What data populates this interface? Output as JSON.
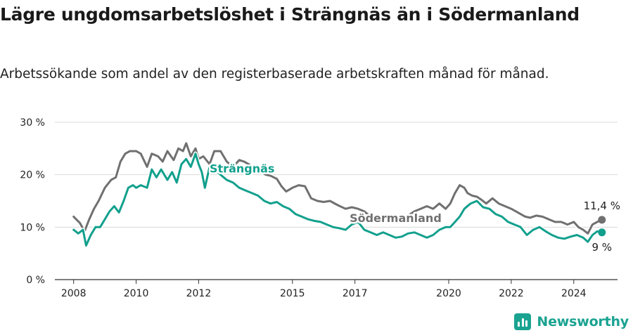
{
  "chart_data": {
    "type": "line",
    "title": "Lägre ungdomsarbetslöshet i Strängnäs än i Södermanland",
    "subtitle": "Arbetssökande som andel av den registerbaserade arbetskraften månad för månad.",
    "ylim": [
      0,
      30
    ],
    "yticks": [
      "0 %",
      "10 %",
      "20 %",
      "30 %"
    ],
    "ytick_values": [
      0,
      10,
      20,
      30
    ],
    "xlim": [
      2007.4,
      2025.4
    ],
    "xticks": [
      "2008",
      "2010",
      "2012",
      "2015",
      "2017",
      "2020",
      "2022",
      "2024"
    ],
    "xtick_values": [
      2008,
      2010,
      2012,
      2015,
      2017,
      2020,
      2022,
      2024
    ],
    "series": [
      {
        "name": "Södermanland",
        "color": "#707070",
        "end_label": "11,4 %",
        "label_year": 2018.35,
        "x": [
          2008.0,
          2008.2,
          2008.35,
          2008.5,
          2008.65,
          2008.8,
          2009.0,
          2009.2,
          2009.35,
          2009.5,
          2009.65,
          2009.8,
          2010.0,
          2010.15,
          2010.35,
          2010.5,
          2010.7,
          2010.85,
          2011.0,
          2011.2,
          2011.35,
          2011.5,
          2011.6,
          2011.75,
          2011.9,
          2012.0,
          2012.15,
          2012.35,
          2012.5,
          2012.7,
          2012.9,
          2013.1,
          2013.3,
          2013.45,
          2013.6,
          2013.8,
          2014.0,
          2014.15,
          2014.3,
          2014.5,
          2014.65,
          2014.8,
          2015.0,
          2015.2,
          2015.4,
          2015.6,
          2015.8,
          2016.0,
          2016.2,
          2016.45,
          2016.7,
          2016.9,
          2017.1,
          2017.3,
          2017.5,
          2017.7,
          2017.9,
          2018.1,
          2018.3,
          2018.5,
          2018.7,
          2018.9,
          2019.1,
          2019.3,
          2019.5,
          2019.7,
          2019.9,
          2020.05,
          2020.2,
          2020.35,
          2020.5,
          2020.6,
          2020.75,
          2020.9,
          2021.05,
          2021.2,
          2021.4,
          2021.6,
          2021.8,
          2022.0,
          2022.15,
          2022.3,
          2022.45,
          2022.6,
          2022.8,
          2023.0,
          2023.2,
          2023.4,
          2023.6,
          2023.8,
          2024.0,
          2024.15,
          2024.3,
          2024.45,
          2024.6,
          2024.75,
          2024.9
        ],
        "values": [
          12.0,
          10.8,
          9.2,
          11.5,
          13.5,
          15.0,
          17.5,
          19.0,
          19.5,
          22.5,
          24.0,
          24.5,
          24.5,
          24.0,
          21.5,
          24.0,
          23.5,
          22.5,
          24.5,
          22.8,
          25.0,
          24.5,
          26.0,
          23.5,
          25.0,
          23.0,
          23.5,
          22.0,
          24.5,
          24.5,
          22.5,
          21.5,
          22.8,
          22.5,
          22.0,
          21.2,
          20.5,
          20.0,
          19.8,
          19.2,
          17.8,
          16.8,
          17.5,
          18.0,
          17.8,
          15.5,
          15.0,
          14.8,
          15.0,
          14.2,
          13.5,
          13.8,
          13.5,
          13.0,
          12.0,
          11.8,
          11.5,
          11.2,
          11.8,
          12.0,
          12.2,
          13.0,
          13.5,
          14.0,
          13.5,
          14.5,
          13.5,
          14.5,
          16.5,
          18.0,
          17.5,
          16.5,
          16.0,
          15.8,
          15.2,
          14.5,
          15.5,
          14.5,
          14.0,
          13.5,
          13.0,
          12.5,
          12.0,
          11.8,
          12.2,
          12.0,
          11.5,
          11.0,
          11.0,
          10.5,
          11.0,
          10.0,
          9.5,
          8.8,
          10.5,
          11.0,
          11.4
        ]
      },
      {
        "name": "Strängnäs",
        "color": "#12a08d",
        "end_label": "9 %",
        "label_year": 2012.35,
        "x": [
          2008.0,
          2008.15,
          2008.3,
          2008.4,
          2008.55,
          2008.7,
          2008.85,
          2009.0,
          2009.15,
          2009.3,
          2009.45,
          2009.6,
          2009.75,
          2009.9,
          2010.0,
          2010.15,
          2010.35,
          2010.5,
          2010.65,
          2010.8,
          2011.0,
          2011.15,
          2011.3,
          2011.45,
          2011.6,
          2011.75,
          2011.9,
          2012.0,
          2012.1,
          2012.2,
          2012.35,
          2012.5,
          2012.7,
          2012.9,
          2013.1,
          2013.3,
          2013.5,
          2013.7,
          2013.9,
          2014.1,
          2014.3,
          2014.5,
          2014.7,
          2014.9,
          2015.1,
          2015.3,
          2015.5,
          2015.7,
          2015.9,
          2016.1,
          2016.3,
          2016.5,
          2016.7,
          2016.9,
          2017.1,
          2017.3,
          2017.5,
          2017.7,
          2017.9,
          2018.1,
          2018.3,
          2018.5,
          2018.7,
          2018.9,
          2019.1,
          2019.3,
          2019.5,
          2019.7,
          2019.9,
          2020.05,
          2020.2,
          2020.35,
          2020.5,
          2020.7,
          2020.9,
          2021.1,
          2021.3,
          2021.5,
          2021.7,
          2021.9,
          2022.1,
          2022.3,
          2022.5,
          2022.7,
          2022.9,
          2023.1,
          2023.3,
          2023.5,
          2023.7,
          2023.9,
          2024.1,
          2024.3,
          2024.45,
          2024.6,
          2024.75,
          2024.9
        ],
        "values": [
          9.5,
          8.8,
          9.5,
          6.5,
          8.5,
          10.0,
          10.0,
          11.5,
          13.0,
          14.0,
          12.8,
          15.0,
          17.5,
          18.0,
          17.5,
          18.0,
          17.5,
          21.0,
          19.5,
          21.0,
          19.0,
          20.5,
          18.5,
          22.0,
          23.0,
          21.5,
          24.0,
          22.0,
          20.5,
          17.5,
          21.5,
          21.0,
          20.0,
          19.0,
          18.5,
          17.5,
          17.0,
          16.5,
          16.0,
          15.0,
          14.5,
          14.8,
          14.0,
          13.5,
          12.5,
          12.0,
          11.5,
          11.2,
          11.0,
          10.5,
          10.0,
          9.8,
          9.5,
          10.5,
          11.0,
          9.5,
          9.0,
          8.5,
          9.0,
          8.5,
          8.0,
          8.2,
          8.8,
          9.0,
          8.5,
          8.0,
          8.5,
          9.5,
          10.0,
          10.0,
          11.0,
          12.0,
          13.5,
          14.5,
          15.0,
          13.8,
          13.5,
          12.5,
          12.0,
          11.0,
          10.5,
          10.0,
          8.5,
          9.5,
          10.0,
          9.2,
          8.5,
          8.0,
          7.8,
          8.2,
          8.5,
          8.0,
          7.2,
          8.5,
          9.2,
          9.0
        ]
      }
    ]
  },
  "brand": {
    "name": "Newsworthy",
    "icon": "bar-chart-logo"
  }
}
